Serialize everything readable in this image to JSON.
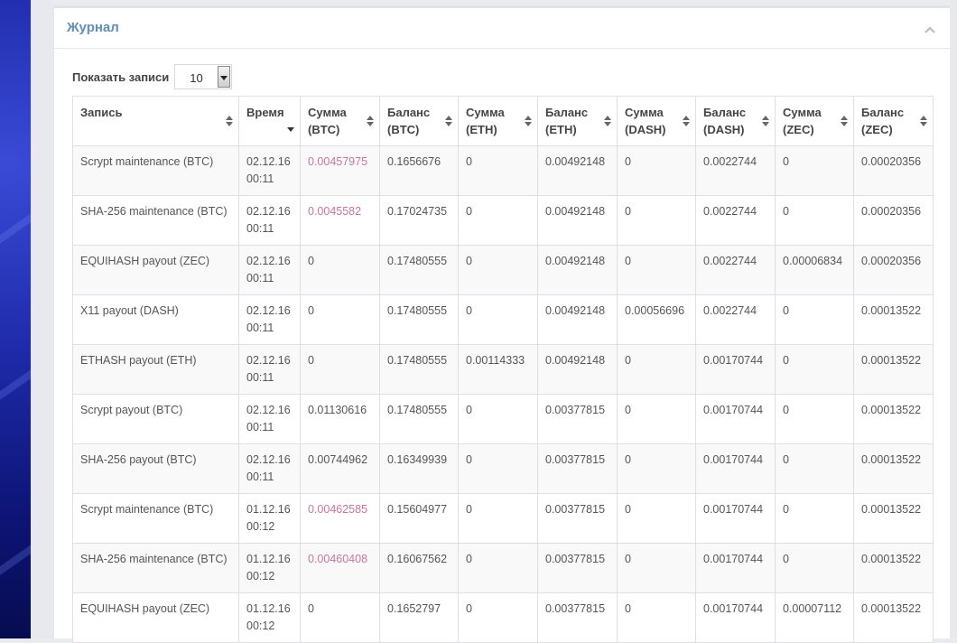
{
  "panel": {
    "title": "Журнал"
  },
  "length": {
    "label": "Показать записи",
    "value": "10"
  },
  "columns": [
    [
      "Запись",
      ""
    ],
    [
      "Время",
      ""
    ],
    [
      "Сумма",
      "(BTC)"
    ],
    [
      "Баланс",
      "(BTC)"
    ],
    [
      "Сумма",
      "(ETH)"
    ],
    [
      "Баланс",
      "(ETH)"
    ],
    [
      "Сумма",
      "(DASH)"
    ],
    [
      "Баланс",
      "(DASH)"
    ],
    [
      "Сумма",
      "(ZEC)"
    ],
    [
      "Баланс",
      "(ZEC)"
    ]
  ],
  "rows": [
    [
      "Scrypt maintenance (BTC)",
      "02.12.16",
      "00:11",
      "0.00457975",
      "0.1656676",
      "0",
      "0.00492148",
      "0",
      "0.0022744",
      "0",
      "0.00020356"
    ],
    [
      "SHA-256 maintenance (BTC)",
      "02.12.16",
      "00:11",
      "0.0045582",
      "0.17024735",
      "0",
      "0.00492148",
      "0",
      "0.0022744",
      "0",
      "0.00020356"
    ],
    [
      "EQUIHASH payout (ZEC)",
      "02.12.16",
      "00:11",
      "0",
      "0.17480555",
      "0",
      "0.00492148",
      "0",
      "0.0022744",
      "0.00006834",
      "0.00020356"
    ],
    [
      "X11 payout (DASH)",
      "02.12.16",
      "00:11",
      "0",
      "0.17480555",
      "0",
      "0.00492148",
      "0.00056696",
      "0.0022744",
      "0",
      "0.00013522"
    ],
    [
      "ETHASH payout (ETH)",
      "02.12.16",
      "00:11",
      "0",
      "0.17480555",
      "0.00114333",
      "0.00492148",
      "0",
      "0.00170744",
      "0",
      "0.00013522"
    ],
    [
      "Scrypt payout (BTC)",
      "02.12.16",
      "00:11",
      "0.01130616",
      "0.17480555",
      "0",
      "0.00377815",
      "0",
      "0.00170744",
      "0",
      "0.00013522"
    ],
    [
      "SHA-256 payout (BTC)",
      "02.12.16",
      "00:11",
      "0.00744962",
      "0.16349939",
      "0",
      "0.00377815",
      "0",
      "0.00170744",
      "0",
      "0.00013522"
    ],
    [
      "Scrypt maintenance (BTC)",
      "01.12.16",
      "00:12",
      "0.00462585",
      "0.15604977",
      "0",
      "0.00377815",
      "0",
      "0.00170744",
      "0",
      "0.00013522"
    ],
    [
      "SHA-256 maintenance (BTC)",
      "01.12.16",
      "00:12",
      "0.00460408",
      "0.16067562",
      "0",
      "0.00377815",
      "0",
      "0.00170744",
      "0",
      "0.00013522"
    ],
    [
      "EQUIHASH payout (ZEC)",
      "01.12.16",
      "00:12",
      "0",
      "0.1652797",
      "0",
      "0.00377815",
      "0",
      "0.00170744",
      "0.00007112",
      "0.00013522"
    ]
  ],
  "negative_amount_rows": [
    0,
    1,
    7,
    8
  ],
  "colors": {
    "title": "#5f8fb4",
    "negative_amount": "#c9769e",
    "background_left": "#1e2aa8"
  }
}
